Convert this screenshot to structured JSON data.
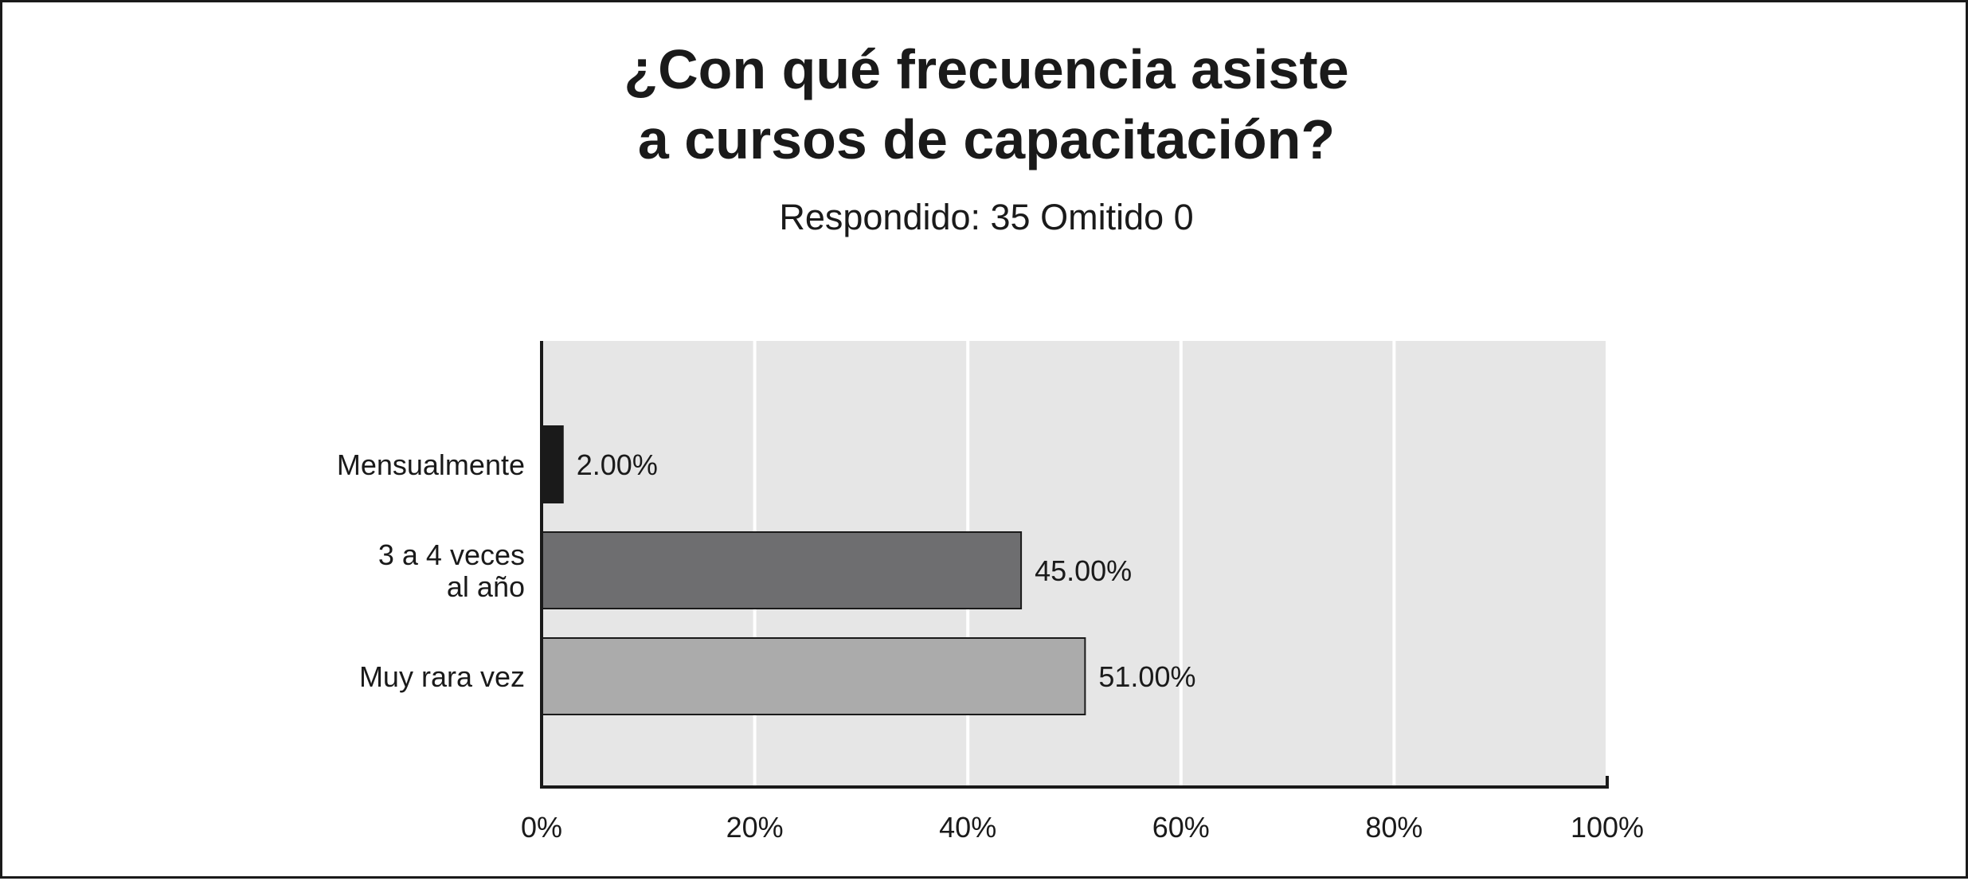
{
  "title_lines": [
    "¿Con qué frecuencia asiste",
    "a cursos de capacitación?"
  ],
  "subtitle": "Respondido: 35 Omitido 0",
  "chart_data": {
    "type": "bar",
    "orientation": "horizontal",
    "title": "¿Con qué frecuencia asiste a cursos de capacitación?",
    "subtitle": "Respondido: 35 Omitido 0",
    "categories": [
      [
        "Mensualmente"
      ],
      [
        "3 a 4 veces",
        "al año"
      ],
      [
        "Muy rara vez"
      ]
    ],
    "values": [
      2.0,
      45.0,
      51.0
    ],
    "data_labels": [
      "2.00%",
      "45.00%",
      "51.00%"
    ],
    "bar_colors": [
      "#1a1a1a",
      "#6e6e70",
      "#ababab"
    ],
    "xlim": [
      0,
      100
    ],
    "x_ticks": [
      0,
      20,
      40,
      60,
      80,
      100
    ],
    "x_tick_labels": [
      "0%",
      "20%",
      "40%",
      "60%",
      "80%",
      "100%"
    ],
    "plot_background": "#e6e6e6",
    "gridlines": "vertical",
    "legend": "none"
  }
}
